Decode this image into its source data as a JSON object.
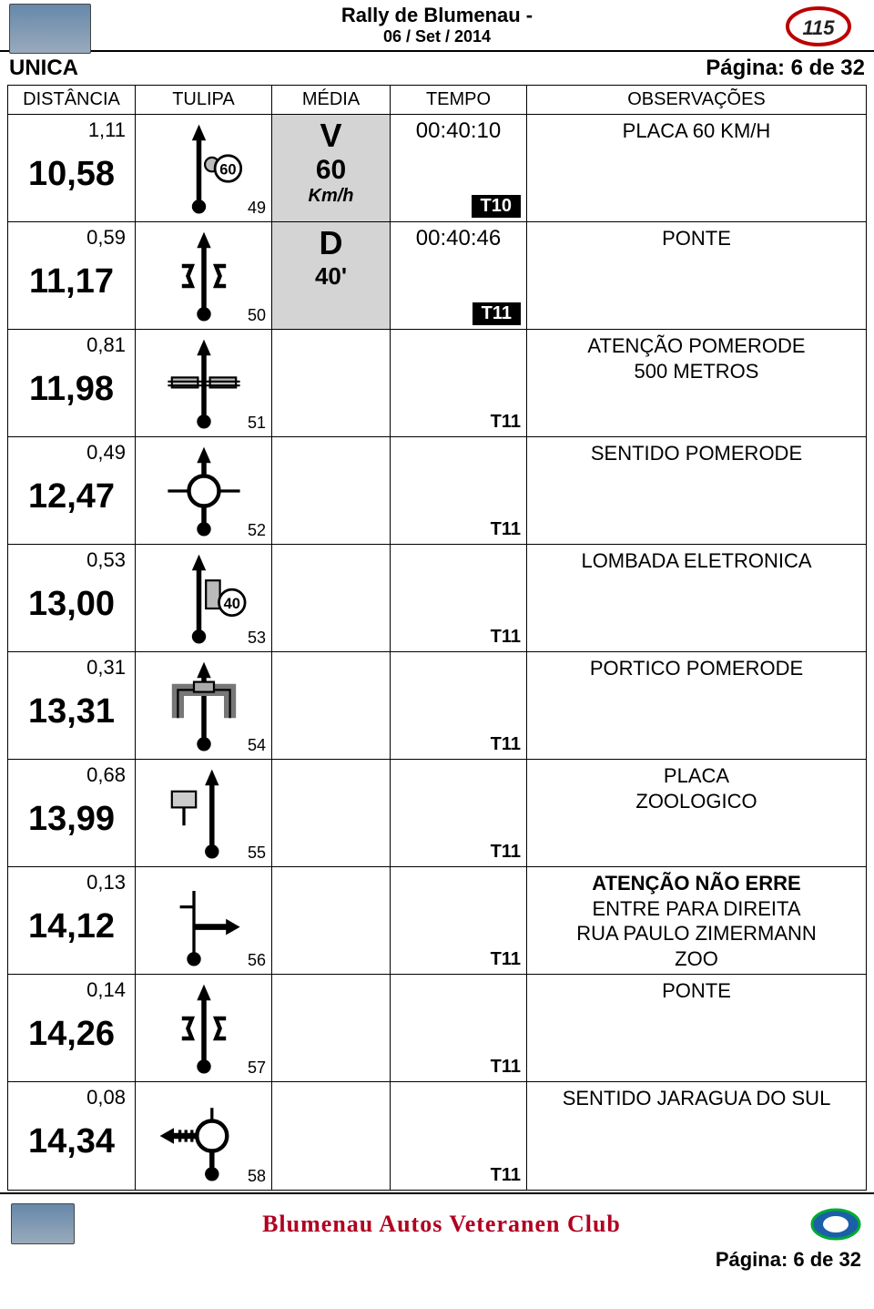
{
  "header": {
    "title": "Rally de Blumenau -",
    "date": "06 / Set / 2014"
  },
  "topline": {
    "left": "UNICA",
    "right": "Página: 6 de 32"
  },
  "columns": {
    "dist": "DISTÂNCIA",
    "tulipa": "TULIPA",
    "media": "MÉDIA",
    "tempo": "TEMPO",
    "obs": "OBSERVAÇÕES"
  },
  "rows": [
    {
      "partial": "1,11",
      "total": "10,58",
      "tulipa_num": "49",
      "tulipa": "speed60",
      "media": {
        "shaded": true,
        "letter": "V",
        "val": "60",
        "unit": "Km/h"
      },
      "tempo": {
        "time": "00:40:10",
        "tag": "T10",
        "inv": true
      },
      "obs": [
        "PLACA 60 KM/H"
      ]
    },
    {
      "partial": "0,59",
      "total": "11,17",
      "tulipa_num": "50",
      "tulipa": "bridge",
      "media": {
        "shaded": true,
        "letter": "D",
        "sub": "40'"
      },
      "tempo": {
        "time": "00:40:46",
        "tag": "T11",
        "inv": true
      },
      "obs": [
        "PONTE"
      ]
    },
    {
      "partial": "0,81",
      "total": "11,98",
      "tulipa_num": "51",
      "tulipa": "rail",
      "tempo": {
        "tag": "T11"
      },
      "obs": [
        "ATENÇÃO POMERODE",
        "500 METROS"
      ]
    },
    {
      "partial": "0,49",
      "total": "12,47",
      "tulipa_num": "52",
      "tulipa": "roundabout",
      "tempo": {
        "tag": "T11"
      },
      "obs": [
        "SENTIDO POMERODE"
      ]
    },
    {
      "partial": "0,53",
      "total": "13,00",
      "tulipa_num": "53",
      "tulipa": "speed40box",
      "tempo": {
        "tag": "T11"
      },
      "obs": [
        "LOMBADA ELETRONICA"
      ]
    },
    {
      "partial": "0,31",
      "total": "13,31",
      "tulipa_num": "54",
      "tulipa": "portico",
      "tempo": {
        "tag": "T11"
      },
      "obs": [
        "PORTICO POMERODE"
      ]
    },
    {
      "partial": "0,68",
      "total": "13,99",
      "tulipa_num": "55",
      "tulipa": "signleft",
      "tempo": {
        "tag": "T11"
      },
      "obs": [
        "PLACA",
        "ZOOLOGICO"
      ]
    },
    {
      "partial": "0,13",
      "total": "14,12",
      "tulipa_num": "56",
      "tulipa": "turnright",
      "tempo": {
        "tag": "T11"
      },
      "obs_bold_first": true,
      "obs": [
        "ATENÇÃO NÃO ERRE",
        "ENTRE PARA DIREITA",
        "RUA PAULO ZIMERMANN",
        "ZOO"
      ]
    },
    {
      "partial": "0,14",
      "total": "14,26",
      "tulipa_num": "57",
      "tulipa": "bridge",
      "tempo": {
        "tag": "T11"
      },
      "obs": [
        "PONTE"
      ]
    },
    {
      "partial": "0,08",
      "total": "14,34",
      "tulipa_num": "58",
      "tulipa": "roundleft",
      "tempo": {
        "tag": "T11"
      },
      "obs": [
        "SENTIDO JARAGUA DO SUL"
      ]
    }
  ],
  "footer": {
    "club": "Blumenau Autos Veteranen Club",
    "page": "Página: 6 de 32"
  },
  "colors": {
    "shaded": "#d4d4d4",
    "tagbg": "#000000",
    "tagfg": "#ffffff",
    "club": "#b00020"
  },
  "tulipa_svg": {
    "stroke": "#000000",
    "fill_gray": "#c0c0c0"
  }
}
